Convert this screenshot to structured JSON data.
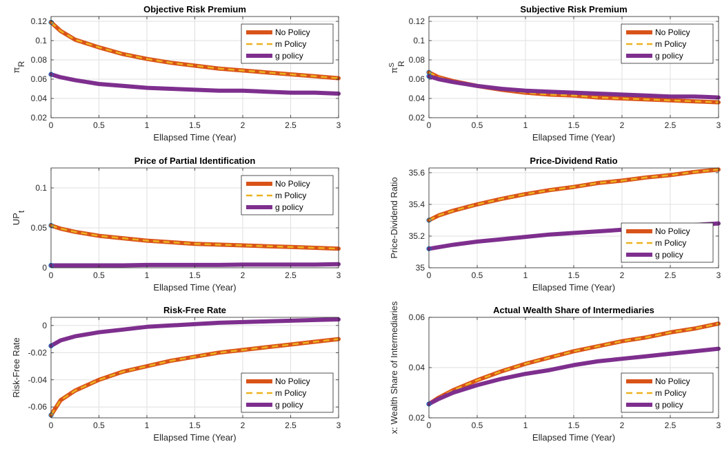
{
  "chart_data": [
    {
      "type": "line",
      "title": "Objective Risk Premium",
      "xlabel": "Ellapsed Time (Year)",
      "ylabel_main": "π",
      "ylabel_sub": "R",
      "ylabel_sup": "",
      "xlim": [
        0,
        3
      ],
      "ylim": [
        0.02,
        0.125
      ],
      "xticks": [
        0,
        0.5,
        1,
        1.5,
        2,
        2.5,
        3
      ],
      "xtick_labels": [
        "0",
        "0.5",
        "1",
        "1.5",
        "2",
        "2.5",
        "3"
      ],
      "yticks": [
        0.02,
        0.04,
        0.06,
        0.08,
        0.1,
        0.12
      ],
      "ytick_labels": [
        "0.02",
        "0.04",
        "0.06",
        "0.08",
        "0.1",
        "0.12"
      ],
      "grid": true,
      "legend_position": "top-right",
      "x": [
        0,
        0.1,
        0.25,
        0.5,
        0.75,
        1,
        1.25,
        1.5,
        1.75,
        2,
        2.25,
        2.5,
        2.75,
        3
      ],
      "series": [
        {
          "name": "No Policy",
          "color": "#D95319",
          "style": "solid",
          "values": [
            0.119,
            0.11,
            0.101,
            0.093,
            0.086,
            0.081,
            0.077,
            0.074,
            0.071,
            0.069,
            0.067,
            0.065,
            0.063,
            0.061
          ]
        },
        {
          "name": "m Policy",
          "color": "#EDB120",
          "style": "dashed",
          "values": [
            0.119,
            0.11,
            0.101,
            0.093,
            0.086,
            0.081,
            0.077,
            0.074,
            0.071,
            0.069,
            0.067,
            0.065,
            0.063,
            0.061
          ]
        },
        {
          "name": "g policy",
          "color": "#7E2F8E",
          "style": "solid",
          "values": [
            0.065,
            0.062,
            0.059,
            0.055,
            0.053,
            0.051,
            0.05,
            0.049,
            0.048,
            0.048,
            0.047,
            0.046,
            0.046,
            0.045
          ]
        }
      ]
    },
    {
      "type": "line",
      "title": "Subjective Risk Premium",
      "xlabel": "Ellapsed Time (Year)",
      "ylabel_main": "π",
      "ylabel_sub": "R",
      "ylabel_sup": "S",
      "xlim": [
        0,
        3
      ],
      "ylim": [
        0.02,
        0.125
      ],
      "xticks": [
        0,
        0.5,
        1,
        1.5,
        2,
        2.5,
        3
      ],
      "xtick_labels": [
        "0",
        "0.5",
        "1",
        "1.5",
        "2",
        "2.5",
        "3"
      ],
      "yticks": [
        0.02,
        0.04,
        0.06,
        0.08,
        0.1,
        0.12
      ],
      "ytick_labels": [
        "0.02",
        "0.04",
        "0.06",
        "0.08",
        "0.1",
        "0.12"
      ],
      "grid": true,
      "legend_position": "top-right",
      "x": [
        0,
        0.1,
        0.25,
        0.5,
        0.75,
        1,
        1.25,
        1.5,
        1.75,
        2,
        2.25,
        2.5,
        2.75,
        3
      ],
      "series": [
        {
          "name": "No Policy",
          "color": "#D95319",
          "style": "solid",
          "values": [
            0.067,
            0.062,
            0.058,
            0.053,
            0.049,
            0.046,
            0.044,
            0.043,
            0.041,
            0.04,
            0.039,
            0.038,
            0.037,
            0.036
          ]
        },
        {
          "name": "m Policy",
          "color": "#EDB120",
          "style": "dashed",
          "values": [
            0.067,
            0.062,
            0.058,
            0.053,
            0.049,
            0.046,
            0.044,
            0.043,
            0.041,
            0.04,
            0.039,
            0.038,
            0.037,
            0.036
          ]
        },
        {
          "name": "g policy",
          "color": "#7E2F8E",
          "style": "solid",
          "values": [
            0.063,
            0.06,
            0.057,
            0.053,
            0.05,
            0.048,
            0.047,
            0.046,
            0.045,
            0.044,
            0.043,
            0.042,
            0.042,
            0.041
          ]
        }
      ]
    },
    {
      "type": "line",
      "title": "Price of Partial Identification",
      "xlabel": "Ellapsed Time (Year)",
      "ylabel_main": "UP",
      "ylabel_sub": "t",
      "ylabel_sup": "",
      "xlim": [
        0,
        3
      ],
      "ylim": [
        0,
        0.125
      ],
      "xticks": [
        0,
        0.5,
        1,
        1.5,
        2,
        2.5,
        3
      ],
      "xtick_labels": [
        "0",
        "0.5",
        "1",
        "1.5",
        "2",
        "2.5",
        "3"
      ],
      "yticks": [
        0,
        0.05,
        0.1
      ],
      "ytick_labels": [
        "0",
        "0.05",
        "0.1"
      ],
      "grid": true,
      "legend_position": "top-right",
      "x": [
        0,
        0.1,
        0.25,
        0.5,
        0.75,
        1,
        1.25,
        1.5,
        1.75,
        2,
        2.25,
        2.5,
        2.75,
        3
      ],
      "series": [
        {
          "name": "No Policy",
          "color": "#D95319",
          "style": "solid",
          "values": [
            0.053,
            0.049,
            0.045,
            0.04,
            0.037,
            0.034,
            0.032,
            0.03,
            0.029,
            0.028,
            0.027,
            0.026,
            0.025,
            0.024
          ]
        },
        {
          "name": "m Policy",
          "color": "#EDB120",
          "style": "dashed",
          "values": [
            0.053,
            0.049,
            0.045,
            0.04,
            0.037,
            0.034,
            0.032,
            0.03,
            0.029,
            0.028,
            0.027,
            0.026,
            0.025,
            0.024
          ]
        },
        {
          "name": "g policy",
          "color": "#7E2F8E",
          "style": "solid",
          "values": [
            0.003,
            0.003,
            0.003,
            0.003,
            0.003,
            0.0035,
            0.0035,
            0.0035,
            0.0035,
            0.004,
            0.004,
            0.004,
            0.004,
            0.0045
          ]
        }
      ]
    },
    {
      "type": "line",
      "title": "Price-Dividend Ratio",
      "xlabel": "Ellapsed Time (Year)",
      "ylabel_main": "Price-Dividend Ratio",
      "ylabel_sub": "",
      "ylabel_sup": "",
      "xlim": [
        0,
        3
      ],
      "ylim": [
        35,
        35.63
      ],
      "xticks": [
        0,
        0.5,
        1,
        1.5,
        2,
        2.5,
        3
      ],
      "xtick_labels": [
        "0",
        "0.5",
        "1",
        "1.5",
        "2",
        "2.5",
        "3"
      ],
      "yticks": [
        35,
        35.2,
        35.4,
        35.6
      ],
      "ytick_labels": [
        "35",
        "35.2",
        "35.4",
        "35.6"
      ],
      "grid": true,
      "legend_position": "bottom-right",
      "x": [
        0,
        0.1,
        0.25,
        0.5,
        0.75,
        1,
        1.25,
        1.5,
        1.75,
        2,
        2.25,
        2.5,
        2.75,
        3
      ],
      "series": [
        {
          "name": "No Policy",
          "color": "#D95319",
          "style": "solid",
          "values": [
            35.3,
            35.33,
            35.36,
            35.4,
            35.435,
            35.465,
            35.49,
            35.51,
            35.535,
            35.55,
            35.57,
            35.585,
            35.605,
            35.62
          ]
        },
        {
          "name": "m Policy",
          "color": "#EDB120",
          "style": "dashed",
          "values": [
            35.3,
            35.33,
            35.36,
            35.4,
            35.435,
            35.465,
            35.49,
            35.51,
            35.535,
            35.55,
            35.57,
            35.585,
            35.605,
            35.62
          ]
        },
        {
          "name": "g policy",
          "color": "#7E2F8E",
          "style": "solid",
          "values": [
            35.12,
            35.13,
            35.145,
            35.165,
            35.18,
            35.195,
            35.21,
            35.22,
            35.23,
            35.24,
            35.25,
            35.26,
            35.27,
            35.28
          ]
        }
      ]
    },
    {
      "type": "line",
      "title": "Risk-Free Rate",
      "xlabel": "Ellapsed Time (Year)",
      "ylabel_main": "Risk-Free Rate",
      "ylabel_sub": "",
      "ylabel_sup": "",
      "xlim": [
        0,
        3
      ],
      "ylim": [
        -0.068,
        0.006
      ],
      "xticks": [
        0,
        0.5,
        1,
        1.5,
        2,
        2.5,
        3
      ],
      "xtick_labels": [
        "0",
        "0.5",
        "1",
        "1.5",
        "2",
        "2.5",
        "3"
      ],
      "yticks": [
        -0.06,
        -0.04,
        -0.02,
        0
      ],
      "ytick_labels": [
        "-0.06",
        "-0.04",
        "-0.02",
        "0"
      ],
      "grid": true,
      "legend_position": "bottom-right",
      "x": [
        0,
        0.1,
        0.25,
        0.5,
        0.75,
        1,
        1.25,
        1.5,
        1.75,
        2,
        2.25,
        2.5,
        2.75,
        3
      ],
      "series": [
        {
          "name": "No Policy",
          "color": "#D95319",
          "style": "solid",
          "values": [
            -0.066,
            -0.055,
            -0.048,
            -0.04,
            -0.034,
            -0.03,
            -0.026,
            -0.023,
            -0.02,
            -0.018,
            -0.016,
            -0.014,
            -0.012,
            -0.01
          ]
        },
        {
          "name": "m Policy",
          "color": "#EDB120",
          "style": "dashed",
          "values": [
            -0.066,
            -0.055,
            -0.048,
            -0.04,
            -0.034,
            -0.03,
            -0.026,
            -0.023,
            -0.02,
            -0.018,
            -0.016,
            -0.014,
            -0.012,
            -0.01
          ]
        },
        {
          "name": "g policy",
          "color": "#7E2F8E",
          "style": "solid",
          "values": [
            -0.015,
            -0.011,
            -0.008,
            -0.005,
            -0.003,
            -0.001,
            0.0,
            0.001,
            0.002,
            0.0025,
            0.003,
            0.0035,
            0.004,
            0.0045
          ]
        }
      ]
    },
    {
      "type": "line",
      "title": "Actual Wealth Share of Intermediaries",
      "xlabel": "Ellapsed Time (Year)",
      "ylabel_main": "x: Wealth Share of Intermediaries",
      "ylabel_sub": "",
      "ylabel_sup": "",
      "xlim": [
        0,
        3
      ],
      "ylim": [
        0.02,
        0.06
      ],
      "xticks": [
        0,
        0.5,
        1,
        1.5,
        2,
        2.5,
        3
      ],
      "xtick_labels": [
        "0",
        "0.5",
        "1",
        "1.5",
        "2",
        "2.5",
        "3"
      ],
      "yticks": [
        0.02,
        0.04,
        0.06
      ],
      "ytick_labels": [
        "0.02",
        "0.04",
        "0.06"
      ],
      "grid": true,
      "legend_position": "bottom-right",
      "x": [
        0,
        0.1,
        0.25,
        0.5,
        0.75,
        1,
        1.25,
        1.5,
        1.75,
        2,
        2.25,
        2.5,
        2.75,
        3
      ],
      "series": [
        {
          "name": "No Policy",
          "color": "#D95319",
          "style": "solid",
          "values": [
            0.0255,
            0.028,
            0.031,
            0.035,
            0.0385,
            0.0415,
            0.044,
            0.0465,
            0.0485,
            0.0505,
            0.052,
            0.054,
            0.0555,
            0.0575
          ]
        },
        {
          "name": "m Policy",
          "color": "#EDB120",
          "style": "dashed",
          "values": [
            0.0255,
            0.028,
            0.031,
            0.035,
            0.0385,
            0.0415,
            0.044,
            0.0465,
            0.0485,
            0.0505,
            0.052,
            0.054,
            0.0555,
            0.0575
          ]
        },
        {
          "name": "g policy",
          "color": "#7E2F8E",
          "style": "solid",
          "values": [
            0.0255,
            0.0275,
            0.03,
            0.033,
            0.0355,
            0.0375,
            0.039,
            0.041,
            0.0425,
            0.0435,
            0.0445,
            0.0455,
            0.0465,
            0.0475
          ]
        }
      ]
    }
  ]
}
